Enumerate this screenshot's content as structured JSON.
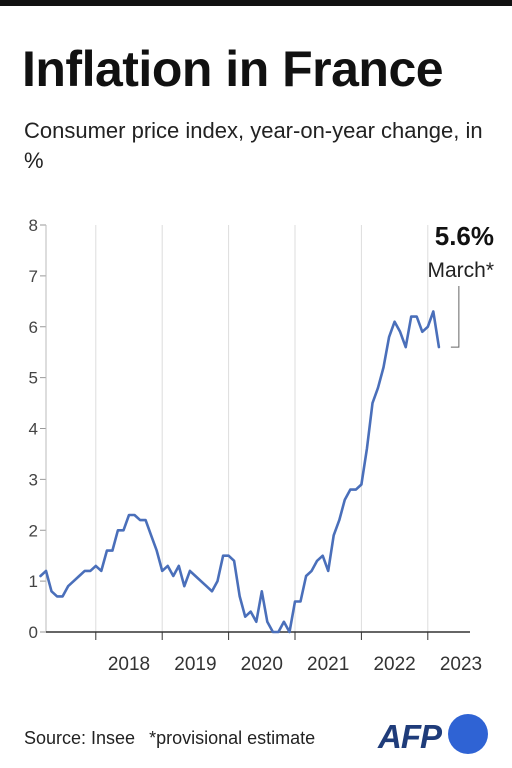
{
  "title": "Inflation in France",
  "subtitle": "Consumer price index, year-on-year change, in %",
  "source": "Source: Insee",
  "footnote": "*provisional estimate",
  "logo_text": "AFP",
  "colors": {
    "line": "#4a6fba",
    "grid": "#dddddd",
    "axis": "#333333",
    "logo_circle": "#2f63d4",
    "logo_text": "#1f3c7a"
  },
  "chart_data": {
    "type": "line",
    "title": "Inflation in France",
    "subtitle": "Consumer price index, year-on-year change, in %",
    "xlabel": "",
    "ylabel": "",
    "ylim": [
      0,
      8
    ],
    "yticks": [
      "0",
      "1",
      "2",
      "3",
      "4",
      "5",
      "6",
      "7",
      "8"
    ],
    "xticks": [
      "2018",
      "2019",
      "2020",
      "2021",
      "2022",
      "2023"
    ],
    "grid": "vertical year lines",
    "annotation": {
      "value": "5.6%",
      "label": "March*"
    },
    "series": [
      {
        "x": [
          "2017-03",
          "2017-04",
          "2017-05",
          "2017-06",
          "2017-07",
          "2017-08",
          "2017-09",
          "2017-10",
          "2017-11",
          "2017-12",
          "2018-01",
          "2018-02",
          "2018-03",
          "2018-04",
          "2018-05",
          "2018-06",
          "2018-07",
          "2018-08",
          "2018-09",
          "2018-10",
          "2018-11",
          "2018-12",
          "2019-01",
          "2019-02",
          "2019-03",
          "2019-04",
          "2019-05",
          "2019-06",
          "2019-07",
          "2019-08",
          "2019-09",
          "2019-10",
          "2019-11",
          "2019-12",
          "2020-01",
          "2020-02",
          "2020-03",
          "2020-04",
          "2020-05",
          "2020-06",
          "2020-07",
          "2020-08",
          "2020-09",
          "2020-10",
          "2020-11",
          "2020-12",
          "2021-01",
          "2021-02",
          "2021-03",
          "2021-04",
          "2021-05",
          "2021-06",
          "2021-07",
          "2021-08",
          "2021-09",
          "2021-10",
          "2021-11",
          "2021-12",
          "2022-01",
          "2022-02",
          "2022-03",
          "2022-04",
          "2022-05",
          "2022-06",
          "2022-07",
          "2022-08",
          "2022-09",
          "2022-10",
          "2022-11",
          "2022-12",
          "2023-01",
          "2023-02",
          "2023-03"
        ],
        "values": [
          1.1,
          1.2,
          0.8,
          0.7,
          0.7,
          0.9,
          1.0,
          1.1,
          1.2,
          1.2,
          1.3,
          1.2,
          1.6,
          1.6,
          2.0,
          2.0,
          2.3,
          2.3,
          2.2,
          2.2,
          1.9,
          1.6,
          1.2,
          1.3,
          1.1,
          1.3,
          0.9,
          1.2,
          1.1,
          1.0,
          0.9,
          0.8,
          1.0,
          1.5,
          1.5,
          1.4,
          0.7,
          0.3,
          0.4,
          0.2,
          0.8,
          0.2,
          0.0,
          0.0,
          0.2,
          0.0,
          0.6,
          0.6,
          1.1,
          1.2,
          1.4,
          1.5,
          1.2,
          1.9,
          2.2,
          2.6,
          2.8,
          2.8,
          2.9,
          3.6,
          4.5,
          4.8,
          5.2,
          5.8,
          6.1,
          5.9,
          5.6,
          6.2,
          6.2,
          5.9,
          6.0,
          6.3,
          5.6
        ]
      }
    ]
  }
}
